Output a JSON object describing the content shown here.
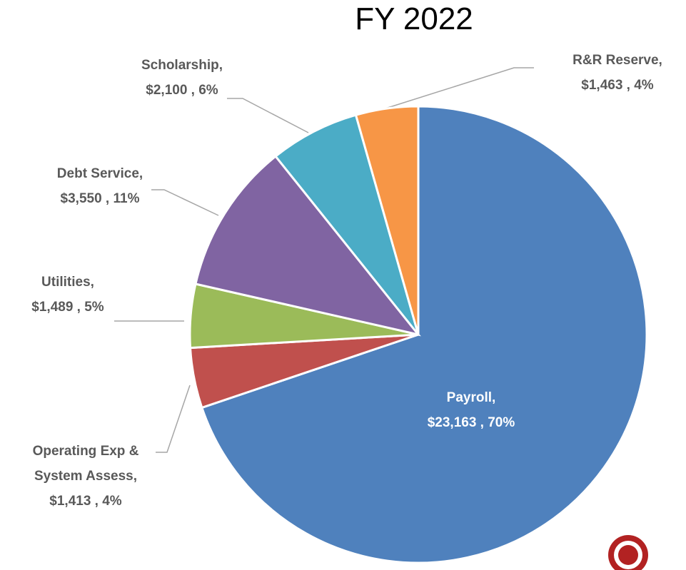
{
  "chart_data": {
    "type": "pie",
    "title": "FY 2022",
    "categories": [
      "Payroll,",
      "Operating Exp & System Assess,",
      "Utilities,",
      "Debt Service,",
      "Scholarship,",
      "R&R Reserve,"
    ],
    "values": [
      23163,
      1413,
      1489,
      3550,
      2100,
      1463
    ],
    "value_labels": [
      "$23,163 , 70%",
      "$1,413 , 4%",
      "$1,489 , 5%",
      "$3,550 , 11%",
      "$2,100 , 6%",
      "$1,463 , 4%"
    ],
    "colors": [
      "#4f81bd",
      "#c0504d",
      "#9bbb59",
      "#8064a2",
      "#4bacc6",
      "#f79646"
    ]
  }
}
